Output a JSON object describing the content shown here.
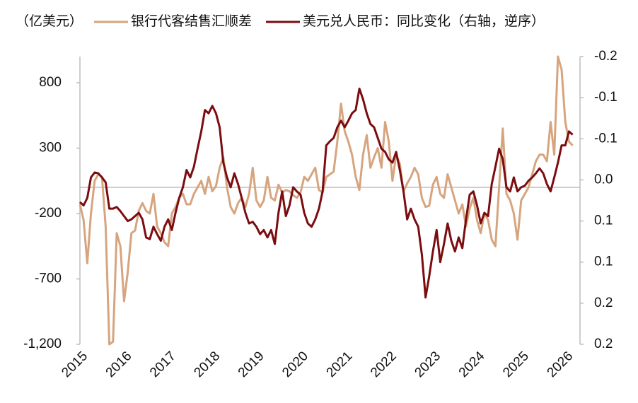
{
  "chart_data": {
    "type": "line",
    "y_unit": "（亿美元）",
    "categories": [
      "2015",
      null,
      null,
      null,
      null,
      null,
      null,
      null,
      null,
      null,
      null,
      null,
      "2016",
      null,
      null,
      null,
      null,
      null,
      null,
      null,
      null,
      null,
      null,
      null,
      "2017",
      null,
      null,
      null,
      null,
      null,
      null,
      null,
      null,
      null,
      null,
      null,
      "2018",
      null,
      null,
      null,
      null,
      null,
      null,
      null,
      null,
      null,
      null,
      null,
      "2019",
      null,
      null,
      null,
      null,
      null,
      null,
      null,
      null,
      null,
      null,
      null,
      "2020",
      null,
      null,
      null,
      null,
      null,
      null,
      null,
      null,
      null,
      null,
      null,
      "2021",
      null,
      null,
      null,
      null,
      null,
      null,
      null,
      null,
      null,
      null,
      null,
      "2022",
      null,
      null,
      null,
      null,
      null,
      null,
      null,
      null,
      null,
      null,
      null,
      "2023",
      null,
      null,
      null,
      null,
      null,
      null,
      null,
      null,
      null,
      null,
      null,
      "2024",
      null,
      null,
      null,
      null,
      null,
      null,
      null,
      null,
      null,
      null,
      null,
      "2025",
      null,
      null,
      null,
      null,
      null,
      null,
      null,
      null,
      null,
      null,
      null,
      "2026",
      null,
      null
    ],
    "series": [
      {
        "name": "银行代客结售汇顺差",
        "color": "#d6a57f",
        "axis": "y",
        "values": [
          -130,
          -250,
          -580,
          -200,
          50,
          100,
          80,
          -300,
          -1200,
          -1180,
          -350,
          -450,
          -870,
          -650,
          -350,
          -330,
          -180,
          -120,
          -180,
          -200,
          -50,
          -300,
          -350,
          -420,
          -450,
          -200,
          -150,
          -80,
          -50,
          -130,
          -130,
          -50,
          0,
          50,
          -50,
          80,
          -30,
          10,
          150,
          230,
          0,
          -150,
          -200,
          -120,
          -80,
          -150,
          -50,
          150,
          -100,
          -150,
          -100,
          80,
          -80,
          -100,
          20,
          -40,
          -20,
          -30,
          -60,
          -80,
          -40,
          80,
          50,
          100,
          150,
          -20,
          -40,
          80,
          100,
          120,
          350,
          640,
          430,
          350,
          250,
          80,
          -20,
          250,
          400,
          150,
          230,
          300,
          150,
          500,
          350,
          50,
          250,
          180,
          -30,
          30,
          80,
          150,
          100,
          -80,
          -150,
          -140,
          20,
          80,
          -50,
          -80,
          100,
          0,
          -100,
          -200,
          -130,
          -300,
          -160,
          -80,
          -250,
          -350,
          -200,
          -250,
          -400,
          -450,
          0,
          450,
          -50,
          -100,
          -200,
          -400,
          -100,
          -50,
          0,
          100,
          200,
          250,
          250,
          200,
          500,
          250,
          1000,
          900,
          500,
          350,
          320
        ]
      },
      {
        "name": "美元兑人民币：同比变化（右轴，逆序）",
        "color": "#7b0c10",
        "axis": "y2",
        "values": [
          0.027,
          0.031,
          0.022,
          -0.003,
          -0.009,
          -0.008,
          -0.003,
          0.003,
          0.035,
          0.035,
          0.033,
          0.038,
          0.044,
          0.05,
          0.048,
          0.044,
          0.04,
          0.048,
          0.07,
          0.072,
          0.057,
          0.066,
          0.074,
          0.057,
          0.048,
          0.061,
          0.04,
          0.022,
          0.009,
          -0.012,
          -0.003,
          -0.016,
          -0.038,
          -0.059,
          -0.085,
          -0.081,
          -0.09,
          -0.081,
          -0.064,
          -0.021,
          -0.003,
          0.009,
          -0.008,
          0.005,
          0.022,
          0.04,
          0.053,
          0.051,
          0.057,
          0.066,
          0.061,
          0.07,
          0.061,
          0.078,
          0.04,
          0.014,
          0.044,
          0.031,
          0.009,
          0.014,
          0.018,
          0.04,
          0.053,
          0.057,
          0.048,
          0.035,
          0.014,
          -0.042,
          -0.047,
          -0.051,
          -0.064,
          -0.072,
          -0.064,
          -0.072,
          -0.081,
          -0.085,
          -0.111,
          -0.098,
          -0.081,
          -0.068,
          -0.064,
          -0.051,
          -0.038,
          -0.034,
          -0.025,
          -0.021,
          -0.034,
          -0.012,
          0.014,
          0.048,
          0.035,
          0.048,
          0.057,
          0.091,
          0.143,
          0.117,
          0.087,
          0.061,
          0.1,
          0.078,
          0.053,
          0.074,
          0.087,
          0.07,
          0.083,
          0.048,
          0.018,
          0.014,
          0.031,
          0.053,
          0.04,
          0.044,
          0.005,
          -0.016,
          -0.038,
          -0.025,
          0.009,
          0.014,
          -0.003,
          0.014,
          0.009,
          0.007,
          0.001,
          -0.003,
          -0.008,
          -0.014,
          -0.008,
          0.005,
          0.014,
          -0.003,
          -0.021,
          -0.042,
          -0.042,
          -0.059,
          -0.055
        ]
      }
    ],
    "ylim": [
      -1200,
      1000
    ],
    "yticks": [
      800,
      300,
      -200,
      -700,
      {
        "value": -1200,
        "label": "-1,200"
      }
    ],
    "y2lim": [
      -0.15,
      0.2
    ],
    "y2_inverted": true,
    "y2ticks": [
      {
        "value": -0.15,
        "label": "-0.2"
      },
      -0.1,
      {
        "value": -0.05,
        "label": "-0.1"
      },
      {
        "value": 0,
        "label": "0.0"
      },
      {
        "value": 0.05,
        "label": "0.1"
      },
      0.1,
      {
        "value": 0.15,
        "label": "0.2"
      },
      0.2
    ],
    "grid": false,
    "legend": "top"
  }
}
